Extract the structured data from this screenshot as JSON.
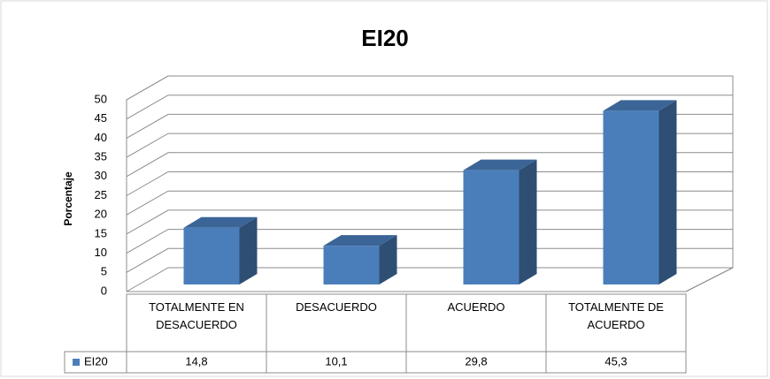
{
  "chart_data": {
    "type": "bar3d",
    "title": "EI20",
    "y_label": "Porcentaje",
    "categories": [
      "TOTALMENTE EN DESACUERDO",
      "DESACUERDO",
      "ACUERDO",
      "TOTALMENTE DE ACUERDO"
    ],
    "series": [
      {
        "name": "EI20",
        "color": "#4a7ebb",
        "values": [
          14.8,
          10.1,
          29.8,
          45.3
        ],
        "value_labels": [
          "14,8",
          "10,1",
          "29,8",
          "45,3"
        ]
      }
    ],
    "ylim": [
      0,
      50
    ],
    "yticks": [
      0,
      5,
      10,
      15,
      20,
      25,
      30,
      35,
      40,
      45,
      50
    ],
    "grid": true
  }
}
